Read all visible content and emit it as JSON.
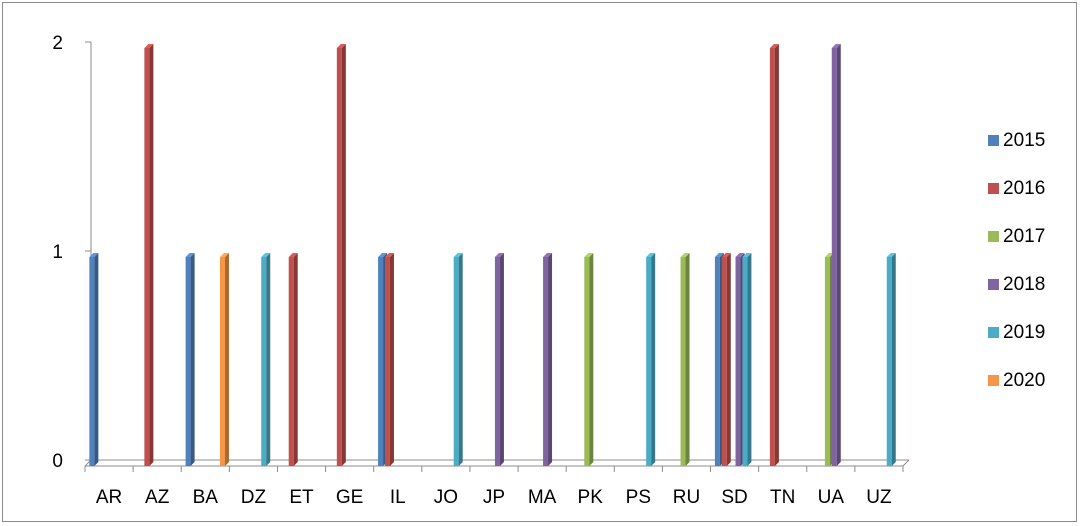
{
  "chart_data": {
    "type": "bar",
    "title": "",
    "xlabel": "",
    "ylabel": "",
    "ylim": [
      0,
      2
    ],
    "yticks": [
      0,
      1,
      2
    ],
    "grid": false,
    "legend_position": "right",
    "categories": [
      "AR",
      "AZ",
      "BA",
      "DZ",
      "ET",
      "GE",
      "IL",
      "JO",
      "JP",
      "MA",
      "PK",
      "PS",
      "RU",
      "SD",
      "TN",
      "UA",
      "UZ"
    ],
    "series": [
      {
        "name": "2015",
        "color": "#4F81BD",
        "values": [
          1,
          0,
          1,
          0,
          0,
          0,
          1,
          0,
          0,
          0,
          0,
          0,
          0,
          1,
          0,
          0,
          0
        ]
      },
      {
        "name": "2016",
        "color": "#C0504D",
        "values": [
          0,
          2,
          0,
          0,
          1,
          2,
          1,
          0,
          0,
          0,
          0,
          0,
          0,
          1,
          2,
          0,
          0
        ]
      },
      {
        "name": "2017",
        "color": "#9BBB59",
        "values": [
          0,
          0,
          0,
          0,
          0,
          0,
          0,
          0,
          0,
          0,
          1,
          0,
          1,
          0,
          0,
          1,
          0
        ]
      },
      {
        "name": "2018",
        "color": "#8064A2",
        "values": [
          0,
          0,
          0,
          0,
          0,
          0,
          0,
          0,
          1,
          1,
          0,
          0,
          0,
          1,
          0,
          2,
          0
        ]
      },
      {
        "name": "2019",
        "color": "#4BACC6",
        "values": [
          0,
          0,
          0,
          1,
          0,
          0,
          0,
          1,
          0,
          0,
          0,
          1,
          0,
          1,
          0,
          0,
          1
        ]
      },
      {
        "name": "2020",
        "color": "#F79646",
        "values": [
          0,
          0,
          1,
          0,
          0,
          0,
          0,
          0,
          0,
          0,
          0,
          0,
          0,
          0,
          0,
          0,
          0
        ]
      }
    ]
  }
}
